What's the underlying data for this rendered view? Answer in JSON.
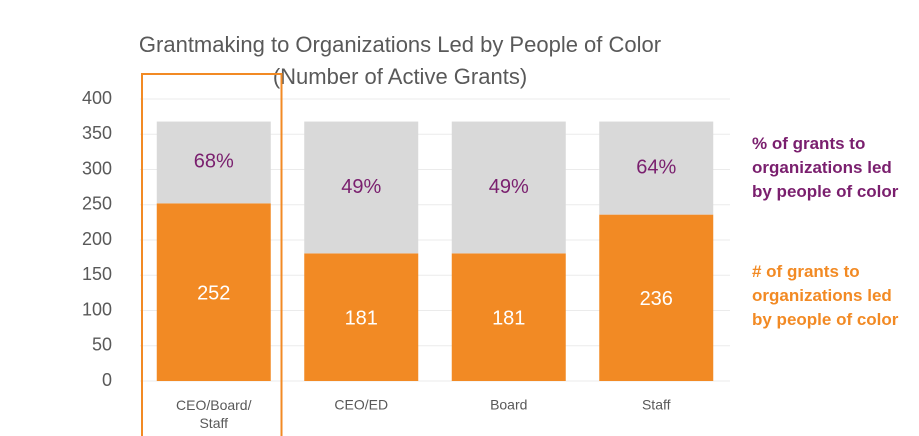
{
  "chart_data": {
    "type": "stacked_bar",
    "title": "Grantmaking to Organizations Led by People of Color",
    "subtitle": "(Number of Active Grants)",
    "categories": [
      "CEO/Board/ Staff",
      "CEO/ED",
      "Board",
      "Staff"
    ],
    "series": [
      {
        "name": "# of grants to organizations led by people of color",
        "color": "#f28a24",
        "values": [
          252,
          181,
          181,
          236
        ]
      },
      {
        "color": "#d9d9d9",
        "values": [
          116,
          187,
          187,
          132
        ]
      }
    ],
    "percent": {
      "name": "% of grants to organizations led by people of color",
      "color": "#7a1f6e",
      "values": [
        68,
        49,
        49,
        64
      ],
      "value_labels": [
        "68%",
        "49%",
        "49%",
        "64%"
      ]
    },
    "ylim": [
      0,
      400
    ],
    "yticks": [
      0,
      50,
      100,
      150,
      200,
      250,
      300,
      350,
      400
    ],
    "grid": true,
    "highlight_category": 0,
    "highlight_color": "#f28a24"
  }
}
